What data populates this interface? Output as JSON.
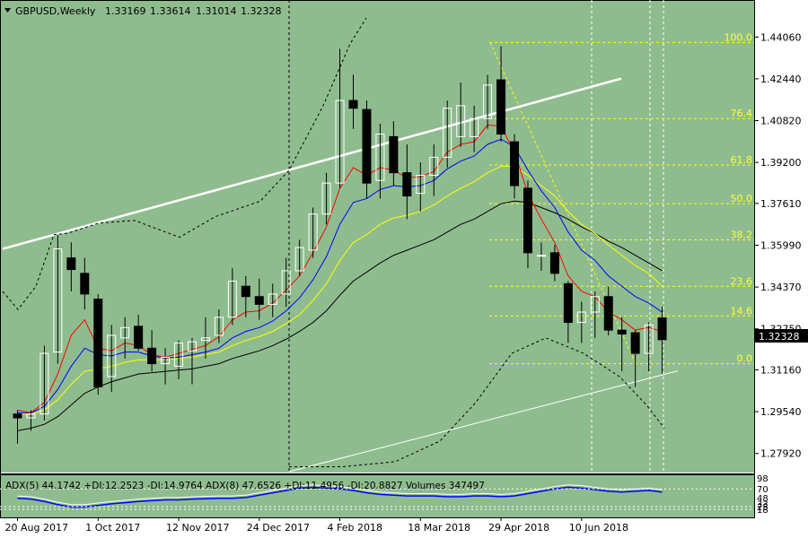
{
  "colors": {
    "background": "#8fbc8f",
    "candle_up": "#ffffff",
    "candle_down": "#000000",
    "ema_red": "#ff0000",
    "ema_blue": "#0000ff",
    "ema_yellow": "#ffff00",
    "ema_black": "#000000",
    "fib_lines": "#ffff00",
    "trendlines": "#ffffff",
    "adx_line": "#0000ff"
  },
  "header": {
    "symbol_label": "GBPUSD,Weekly",
    "open": "1.33169",
    "high": "1.33614",
    "low": "1.31014",
    "close": "1.32328"
  },
  "price_axis": {
    "ticks": [
      "1.44060",
      "1.42440",
      "1.40820",
      "1.39200",
      "1.37610",
      "1.35990",
      "1.34370",
      "1.32750",
      "1.31160",
      "1.29540",
      "1.27920"
    ],
    "current_price": "1.32328"
  },
  "time_axis": {
    "labels": [
      "20 Aug 2017",
      "1 Oct 2017",
      "12 Nov 2017",
      "24 Dec 2017",
      "4 Feb 2018",
      "18 Mar 2018",
      "29 Apr 2018",
      "10 Jun 2018"
    ]
  },
  "fibonacci": {
    "levels": [
      "100.0",
      "76.4",
      "61.8",
      "50.0",
      "38.2",
      "23.6",
      "14.6",
      "0.0"
    ]
  },
  "indicator": {
    "label": "ADX(5) 44.1742 +DI:12.2523 -DI:14.9764  ADX(8) 47.6526 +DI:11.4956 -DI:20.8827  Volumes 347497",
    "axis_ticks": [
      "98",
      "70",
      "48",
      "33",
      "25",
      "18"
    ]
  },
  "chart_data": {
    "type": "candlestick",
    "title": "GBPUSD,Weekly",
    "ylim": [
      1.2725,
      1.448
    ],
    "candles": [
      {
        "o": 1.2945,
        "h": 1.296,
        "l": 1.283,
        "c": 1.293
      },
      {
        "o": 1.293,
        "h": 1.296,
        "l": 1.288,
        "c": 1.2945
      },
      {
        "o": 1.2945,
        "h": 1.321,
        "l": 1.292,
        "c": 1.318
      },
      {
        "o": 1.3185,
        "h": 1.364,
        "l": 1.314,
        "c": 1.3585
      },
      {
        "o": 1.355,
        "h": 1.361,
        "l": 1.342,
        "c": 1.3505
      },
      {
        "o": 1.349,
        "h": 1.355,
        "l": 1.335,
        "c": 1.341
      },
      {
        "o": 1.339,
        "h": 1.341,
        "l": 1.302,
        "c": 1.305
      },
      {
        "o": 1.309,
        "h": 1.329,
        "l": 1.303,
        "c": 1.325
      },
      {
        "o": 1.324,
        "h": 1.332,
        "l": 1.316,
        "c": 1.328
      },
      {
        "o": 1.3285,
        "h": 1.333,
        "l": 1.319,
        "c": 1.32
      },
      {
        "o": 1.32,
        "h": 1.327,
        "l": 1.311,
        "c": 1.314
      },
      {
        "o": 1.314,
        "h": 1.32,
        "l": 1.306,
        "c": 1.3165
      },
      {
        "o": 1.313,
        "h": 1.323,
        "l": 1.308,
        "c": 1.322
      },
      {
        "o": 1.319,
        "h": 1.324,
        "l": 1.306,
        "c": 1.3225
      },
      {
        "o": 1.323,
        "h": 1.332,
        "l": 1.316,
        "c": 1.324
      },
      {
        "o": 1.325,
        "h": 1.335,
        "l": 1.322,
        "c": 1.332
      },
      {
        "o": 1.332,
        "h": 1.351,
        "l": 1.329,
        "c": 1.346
      },
      {
        "o": 1.344,
        "h": 1.348,
        "l": 1.332,
        "c": 1.34
      },
      {
        "o": 1.34,
        "h": 1.347,
        "l": 1.331,
        "c": 1.337
      },
      {
        "o": 1.337,
        "h": 1.345,
        "l": 1.332,
        "c": 1.341
      },
      {
        "o": 1.341,
        "h": 1.355,
        "l": 1.336,
        "c": 1.35
      },
      {
        "o": 1.35,
        "h": 1.362,
        "l": 1.348,
        "c": 1.359
      },
      {
        "o": 1.358,
        "h": 1.3745,
        "l": 1.355,
        "c": 1.372
      },
      {
        "o": 1.372,
        "h": 1.388,
        "l": 1.368,
        "c": 1.384
      },
      {
        "o": 1.384,
        "h": 1.436,
        "l": 1.382,
        "c": 1.416
      },
      {
        "o": 1.416,
        "h": 1.426,
        "l": 1.405,
        "c": 1.413
      },
      {
        "o": 1.4125,
        "h": 1.416,
        "l": 1.378,
        "c": 1.384
      },
      {
        "o": 1.385,
        "h": 1.407,
        "l": 1.378,
        "c": 1.403
      },
      {
        "o": 1.402,
        "h": 1.408,
        "l": 1.383,
        "c": 1.388
      },
      {
        "o": 1.388,
        "h": 1.399,
        "l": 1.37,
        "c": 1.379
      },
      {
        "o": 1.38,
        "h": 1.392,
        "l": 1.373,
        "c": 1.387
      },
      {
        "o": 1.387,
        "h": 1.399,
        "l": 1.379,
        "c": 1.394
      },
      {
        "o": 1.394,
        "h": 1.416,
        "l": 1.39,
        "c": 1.413
      },
      {
        "o": 1.402,
        "h": 1.423,
        "l": 1.398,
        "c": 1.414
      },
      {
        "o": 1.402,
        "h": 1.414,
        "l": 1.396,
        "c": 1.409
      },
      {
        "o": 1.409,
        "h": 1.426,
        "l": 1.405,
        "c": 1.422
      },
      {
        "o": 1.424,
        "h": 1.437,
        "l": 1.4,
        "c": 1.403
      },
      {
        "o": 1.4,
        "h": 1.403,
        "l": 1.378,
        "c": 1.383
      },
      {
        "o": 1.382,
        "h": 1.385,
        "l": 1.351,
        "c": 1.357
      },
      {
        "o": 1.356,
        "h": 1.361,
        "l": 1.35,
        "c": 1.356
      },
      {
        "o": 1.357,
        "h": 1.36,
        "l": 1.346,
        "c": 1.349
      },
      {
        "o": 1.345,
        "h": 1.346,
        "l": 1.322,
        "c": 1.33
      },
      {
        "o": 1.33,
        "h": 1.338,
        "l": 1.322,
        "c": 1.334
      },
      {
        "o": 1.334,
        "h": 1.342,
        "l": 1.324,
        "c": 1.34
      },
      {
        "o": 1.34,
        "h": 1.344,
        "l": 1.325,
        "c": 1.327
      },
      {
        "o": 1.327,
        "h": 1.332,
        "l": 1.311,
        "c": 1.3255
      },
      {
        "o": 1.326,
        "h": 1.327,
        "l": 1.305,
        "c": 1.318
      },
      {
        "o": 1.318,
        "h": 1.33,
        "l": 1.311,
        "c": 1.329
      },
      {
        "o": 1.3317,
        "h": 1.3361,
        "l": 1.3101,
        "c": 1.3233
      }
    ],
    "ema_red": [
      1.296,
      1.295,
      1.299,
      1.31,
      1.325,
      1.331,
      1.32,
      1.319,
      1.322,
      1.321,
      1.3175,
      1.3165,
      1.318,
      1.3195,
      1.321,
      1.3245,
      1.331,
      1.334,
      1.3345,
      1.3375,
      1.3425,
      1.348,
      1.357,
      1.367,
      1.382,
      1.39,
      1.387,
      1.39,
      1.389,
      1.386,
      1.3865,
      1.3885,
      1.396,
      1.399,
      1.4,
      1.4065,
      1.406,
      1.396,
      1.38,
      1.37,
      1.361,
      1.348,
      1.342,
      1.34,
      1.334,
      1.331,
      1.327,
      1.328,
      1.3265
    ],
    "ema_blue": [
      1.295,
      1.2948,
      1.2975,
      1.304,
      1.313,
      1.32,
      1.3175,
      1.317,
      1.3185,
      1.3185,
      1.317,
      1.3162,
      1.3165,
      1.3175,
      1.3185,
      1.32,
      1.324,
      1.3265,
      1.328,
      1.3305,
      1.3345,
      1.3395,
      1.3465,
      1.3555,
      1.368,
      1.3765,
      1.378,
      1.3815,
      1.383,
      1.3825,
      1.383,
      1.385,
      1.3895,
      1.3925,
      1.3945,
      1.399,
      1.401,
      1.398,
      1.389,
      1.381,
      1.3745,
      1.365,
      1.358,
      1.354,
      1.348,
      1.344,
      1.34,
      1.3375,
      1.334
    ],
    "ema_yellow": [
      1.2945,
      1.2945,
      1.296,
      1.3,
      1.306,
      1.311,
      1.312,
      1.313,
      1.3145,
      1.3155,
      1.3155,
      1.3155,
      1.316,
      1.3165,
      1.3175,
      1.3185,
      1.321,
      1.323,
      1.3245,
      1.3265,
      1.3295,
      1.333,
      1.3385,
      1.345,
      1.354,
      1.361,
      1.364,
      1.368,
      1.3705,
      1.3715,
      1.373,
      1.3755,
      1.379,
      1.382,
      1.3845,
      1.388,
      1.3905,
      1.3905,
      1.387,
      1.383,
      1.379,
      1.373,
      1.368,
      1.3645,
      1.36,
      1.356,
      1.352,
      1.349,
      1.344
    ],
    "ema_black": [
      1.288,
      1.289,
      1.2905,
      1.2935,
      1.298,
      1.3025,
      1.305,
      1.307,
      1.3085,
      1.31,
      1.3105,
      1.311,
      1.3115,
      1.312,
      1.313,
      1.314,
      1.316,
      1.3175,
      1.319,
      1.321,
      1.3235,
      1.3265,
      1.33,
      1.3345,
      1.3405,
      1.346,
      1.3495,
      1.353,
      1.356,
      1.358,
      1.36,
      1.362,
      1.365,
      1.368,
      1.37,
      1.373,
      1.376,
      1.377,
      1.3765,
      1.3745,
      1.3725,
      1.37,
      1.367,
      1.3645,
      1.3615,
      1.359,
      1.356,
      1.353,
      1.35
    ],
    "fib_values": [
      1.4385,
      1.409,
      1.391,
      1.376,
      1.362,
      1.344,
      1.3325,
      1.314
    ],
    "adx": [
      46,
      44,
      38,
      30,
      24,
      24,
      28,
      32,
      35,
      38,
      40,
      42,
      42,
      44,
      45,
      46,
      46,
      48,
      54,
      60,
      66,
      72,
      74,
      72,
      70,
      66,
      60,
      56,
      54,
      52,
      52,
      52,
      50,
      50,
      52,
      52,
      50,
      52,
      58,
      64,
      70,
      74,
      72,
      68,
      64,
      62,
      64,
      66,
      62
    ]
  }
}
